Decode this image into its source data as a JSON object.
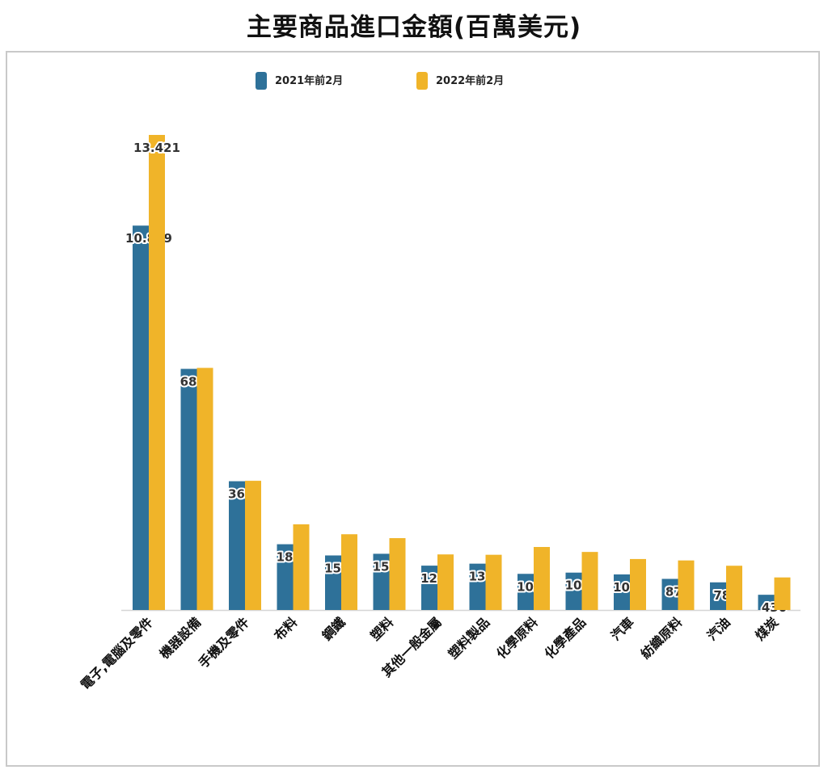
{
  "chart_data": {
    "type": "bar",
    "title": "主要商品進口金額(百萬美元)",
    "xlabel": "",
    "ylabel": "",
    "ylim": [
      0,
      14000
    ],
    "grid": false,
    "legend_position": "top",
    "categories": [
      "電子,電腦及零件",
      "機器設備",
      "手機及零件",
      "布料",
      "鋼鐵",
      "塑料",
      "其他一般金屬",
      "塑料製品",
      "化學原料",
      "化學產品",
      "汽車",
      "紡織原料",
      "汽油",
      "煤炭"
    ],
    "series": [
      {
        "name": "2021年前2月",
        "color": "#2e7199",
        "values": [
          10859,
          6812,
          3638,
          1858,
          1541,
          1588,
          1253,
          1309,
          1021,
          1056,
          1005,
          879,
          781,
          430
        ],
        "labels": [
          "10.859",
          "6812",
          "3638",
          "1858",
          "1541",
          "1588",
          "1253",
          "1309",
          "1021",
          "1056",
          "1005",
          "879",
          "781",
          "430"
        ]
      },
      {
        "name": "2022年前2月",
        "color": "#f0b429",
        "values": [
          13421,
          6840,
          3650,
          2420,
          2140,
          2030,
          1570,
          1560,
          1780,
          1640,
          1440,
          1400,
          1250,
          920
        ],
        "labels": [
          "13.421",
          "",
          "",
          "",
          "",
          "",
          "",
          "",
          "",
          "",
          "",
          "",
          "",
          ""
        ]
      }
    ]
  }
}
